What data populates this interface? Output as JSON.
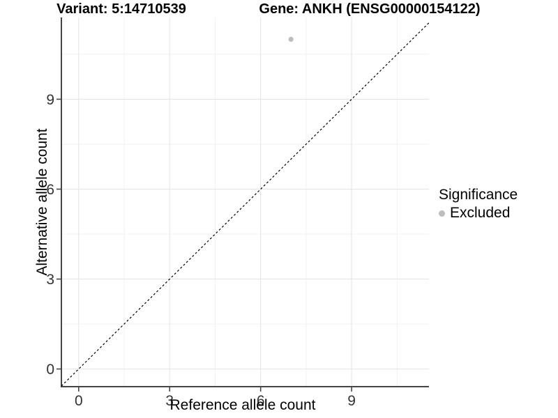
{
  "chart_data": {
    "type": "scatter",
    "title_left": "Variant: 5:14710539",
    "title_right": "Gene: ANKH (ENSG00000154122)",
    "xlabel": "Reference allele count",
    "ylabel": "Alternative allele count",
    "x_ticks": [
      0,
      3,
      6,
      9
    ],
    "y_ticks": [
      0,
      3,
      6,
      9
    ],
    "x_minor_ticks": [
      1.5,
      4.5,
      7.5,
      10.5
    ],
    "y_minor_ticks": [
      1.5,
      4.5,
      7.5,
      10.5
    ],
    "xlim": [
      -0.57,
      11.55
    ],
    "ylim": [
      -0.59,
      11.73
    ],
    "grid": "major+minor",
    "series": [
      {
        "name": "Excluded",
        "color": "#bdbdbd",
        "points": [
          {
            "x": 7,
            "y": 11
          }
        ]
      }
    ],
    "reference_line": {
      "kind": "abline",
      "slope": 1,
      "intercept": 0,
      "linestyle": "dashed",
      "color": "#000000"
    },
    "legend": {
      "title": "Significance",
      "position": "right",
      "items": [
        {
          "label": "Excluded",
          "color": "#bdbdbd"
        }
      ]
    },
    "colors": {
      "background": "#ffffff",
      "grid_major": "#e4e4e4",
      "grid_minor": "#f1f1f1",
      "axis_line": "#454545",
      "tick_mark": "#454545",
      "tick_label": "#333333"
    }
  }
}
